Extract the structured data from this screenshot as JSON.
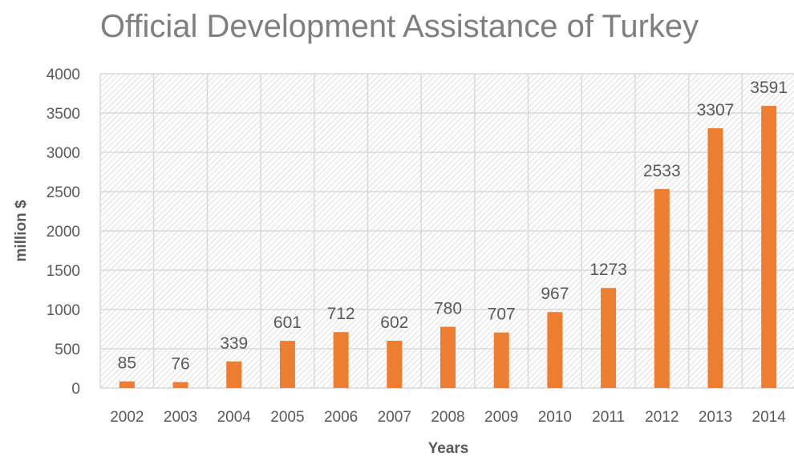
{
  "chart_data": {
    "type": "bar",
    "title": "Official Development Assistance of Turkey",
    "xlabel": "Years",
    "ylabel": "million $",
    "categories": [
      "2002",
      "2003",
      "2004",
      "2005",
      "2006",
      "2007",
      "2008",
      "2009",
      "2010",
      "2011",
      "2012",
      "2013",
      "2014"
    ],
    "values": [
      85,
      76,
      339,
      601,
      712,
      602,
      780,
      707,
      967,
      1273,
      2533,
      3307,
      3591
    ],
    "ylim": [
      0,
      4000
    ],
    "yticks": [
      "0",
      "500",
      "1000",
      "1500",
      "2000",
      "2500",
      "3000",
      "3500",
      "4000"
    ],
    "grid": true,
    "bar_color": "#ed7d31",
    "grid_color": "#d9d9d9",
    "data_labels": true
  }
}
